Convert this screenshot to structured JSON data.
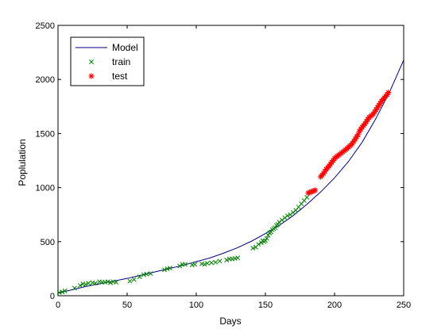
{
  "chart_data": {
    "type": "scatter",
    "title": "",
    "xlabel": "Days",
    "ylabel": "Poplulation",
    "xlim": [
      0,
      250
    ],
    "ylim": [
      0,
      2500
    ],
    "xticks": [
      "0",
      "50",
      "100",
      "150",
      "200",
      "250"
    ],
    "yticks": [
      "0",
      "500",
      "1000",
      "1500",
      "2000",
      "2500"
    ],
    "grid": false,
    "legend_position": "top-left",
    "series": [
      {
        "name": "Model",
        "kind": "line",
        "color": "#00007f",
        "x": [
          0,
          10,
          20,
          30,
          40,
          50,
          60,
          70,
          80,
          90,
          100,
          110,
          120,
          130,
          140,
          150,
          160,
          170,
          180,
          190,
          200,
          210,
          220,
          230,
          240,
          250
        ],
        "y": [
          25,
          55,
          85,
          110,
          135,
          160,
          190,
          220,
          250,
          280,
          315,
          350,
          395,
          445,
          505,
          575,
          650,
          740,
          845,
          960,
          1090,
          1240,
          1420,
          1640,
          1890,
          2180
        ]
      },
      {
        "name": "train",
        "kind": "marker",
        "marker": "x",
        "color": "#008000",
        "x": [
          1,
          3,
          5,
          12,
          16,
          18,
          20,
          22,
          25,
          27,
          30,
          32,
          34,
          36,
          38,
          40,
          42,
          52,
          55,
          59,
          62,
          64,
          67,
          77,
          79,
          81,
          88,
          90,
          92,
          97,
          99,
          104,
          106,
          108,
          111,
          114,
          117,
          122,
          124,
          126,
          128,
          130,
          141,
          143,
          145,
          147,
          148,
          149,
          150,
          151,
          152,
          153,
          154,
          155,
          156,
          157,
          158,
          159,
          160,
          162,
          164,
          166,
          168,
          170,
          172,
          174,
          176,
          178,
          180
        ],
        "y": [
          30,
          35,
          45,
          70,
          95,
          110,
          105,
          115,
          120,
          115,
          130,
          125,
          125,
          130,
          120,
          130,
          125,
          135,
          150,
          175,
          195,
          200,
          205,
          240,
          250,
          255,
          275,
          290,
          290,
          285,
          290,
          295,
          290,
          300,
          305,
          310,
          320,
          330,
          340,
          340,
          345,
          350,
          440,
          450,
          475,
          490,
          510,
          500,
          510,
          530,
          560,
          580,
          590,
          610,
          620,
          630,
          650,
          660,
          680,
          700,
          720,
          740,
          750,
          770,
          790,
          820,
          850,
          880,
          910
        ]
      },
      {
        "name": "test",
        "kind": "marker",
        "marker": "*",
        "color": "#ff0000",
        "x": [
          181,
          182,
          183,
          184,
          185,
          186,
          190,
          191,
          192,
          193,
          194,
          195,
          196,
          197,
          198,
          199,
          200,
          201,
          202,
          203,
          204,
          205,
          206,
          207,
          208,
          209,
          210,
          211,
          212,
          213,
          214,
          215,
          216,
          217,
          218,
          219,
          220,
          221,
          222,
          223,
          224,
          225,
          226,
          227,
          228,
          229,
          230,
          231,
          232,
          233,
          234,
          235,
          236,
          237,
          238,
          239
        ],
        "y": [
          950,
          955,
          960,
          965,
          970,
          975,
          1100,
          1115,
          1130,
          1150,
          1170,
          1185,
          1200,
          1215,
          1235,
          1250,
          1270,
          1280,
          1290,
          1300,
          1310,
          1320,
          1330,
          1340,
          1350,
          1360,
          1375,
          1385,
          1395,
          1410,
          1430,
          1450,
          1470,
          1490,
          1520,
          1540,
          1560,
          1575,
          1590,
          1610,
          1630,
          1650,
          1660,
          1670,
          1680,
          1700,
          1720,
          1740,
          1760,
          1780,
          1800,
          1815,
          1830,
          1845,
          1860,
          1880
        ]
      }
    ]
  }
}
